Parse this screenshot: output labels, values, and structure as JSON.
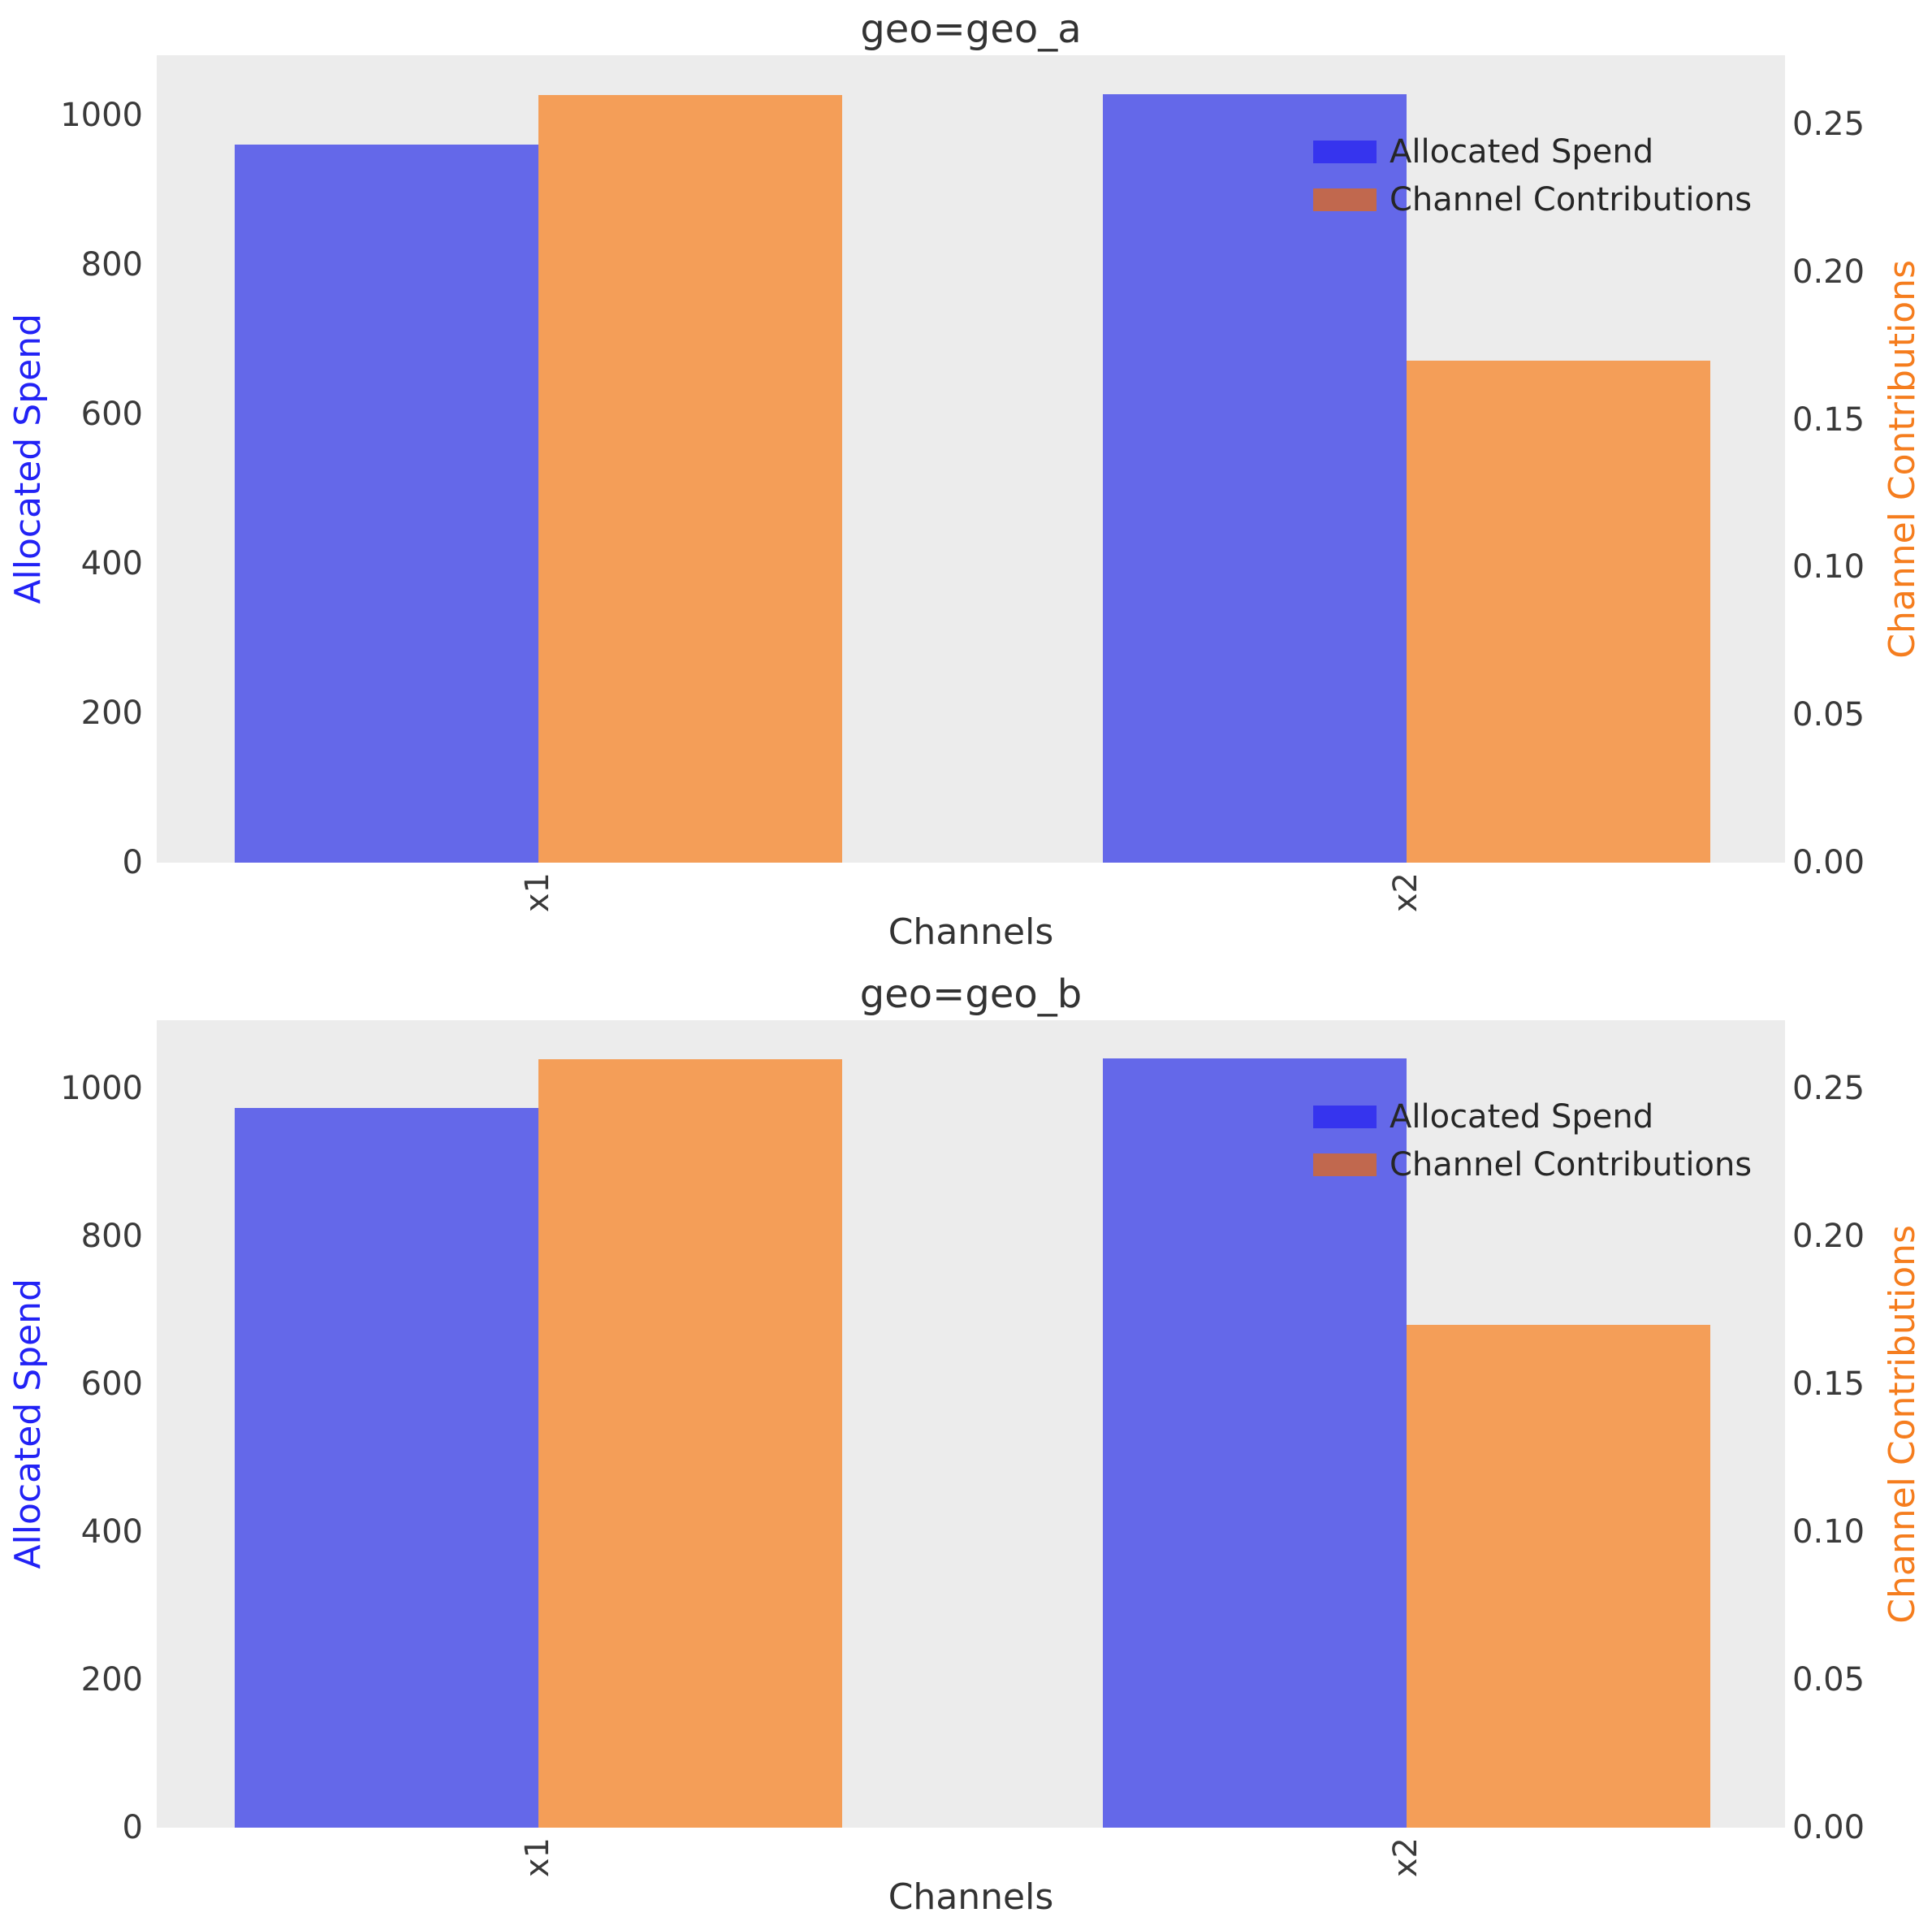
{
  "colors": {
    "bar_spend": "#6468E9",
    "bar_contrib": "#F49E58",
    "legend_spend_swatch": "#3634EE",
    "legend_contrib_swatch": "#C1684E",
    "axis_label_left": "#2222F5",
    "axis_label_right": "#F57D1E",
    "plot_background": "#ECECEC",
    "tick_text": "#3A3A3A"
  },
  "chart_data": [
    {
      "type": "bar",
      "title": "geo=geo_a",
      "xlabel": "Channels",
      "ylabel_left": "Allocated Spend",
      "ylabel_right": "Channel Contributions",
      "categories": [
        "x1",
        "x2"
      ],
      "series": [
        {
          "name": "Allocated Spend",
          "axis": "left",
          "values": [
            960,
            1028
          ]
        },
        {
          "name": "Channel Contributions",
          "axis": "right",
          "values": [
            0.26,
            0.17
          ]
        }
      ],
      "ylim_left": [
        0,
        1080
      ],
      "ylim_right": [
        0,
        0.2734
      ],
      "yticks_left": [
        "0",
        "200",
        "400",
        "600",
        "800",
        "1000"
      ],
      "yticks_right": [
        "0.00",
        "0.05",
        "0.10",
        "0.15",
        "0.20",
        "0.25"
      ],
      "legend": [
        "Allocated Spend",
        "Channel Contributions"
      ],
      "legend_position": "upper right",
      "grid": false
    },
    {
      "type": "bar",
      "title": "geo=geo_b",
      "xlabel": "Channels",
      "ylabel_left": "Allocated Spend",
      "ylabel_right": "Channel Contributions",
      "categories": [
        "x1",
        "x2"
      ],
      "series": [
        {
          "name": "Allocated Spend",
          "axis": "left",
          "values": [
            973,
            1040
          ]
        },
        {
          "name": "Channel Contributions",
          "axis": "right",
          "values": [
            0.26,
            0.17
          ]
        }
      ],
      "ylim_left": [
        0,
        1092
      ],
      "ylim_right": [
        0,
        0.2732
      ],
      "yticks_left": [
        "0",
        "200",
        "400",
        "600",
        "800",
        "1000"
      ],
      "yticks_right": [
        "0.00",
        "0.05",
        "0.10",
        "0.15",
        "0.20",
        "0.25"
      ],
      "legend": [
        "Allocated Spend",
        "Channel Contributions"
      ],
      "legend_position": "upper right",
      "grid": false
    }
  ]
}
